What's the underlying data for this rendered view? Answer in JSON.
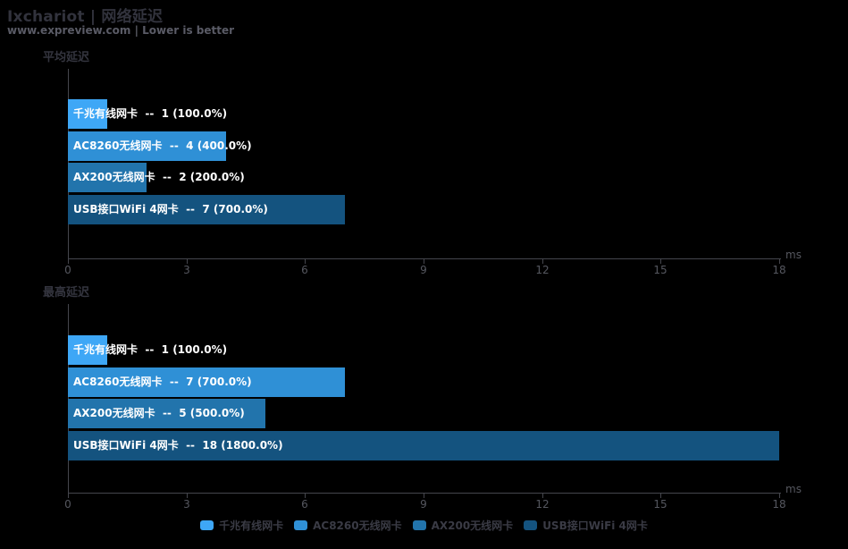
{
  "header": {
    "title": "Ixchariot | 网络延迟",
    "subtitle": "www.expreview.com | Lower is better"
  },
  "palette": {
    "background": "#000000",
    "title_color": "#32333d",
    "subtitle_color": "#5a5b66",
    "section_title_color": "#34353f",
    "axis_color": "#45464d",
    "tick_label_color": "#55575f",
    "legend_text_color": "#3a3b45",
    "bar_label_color": "#ffffff",
    "series_colors": [
      "#3ea7f6",
      "#2f90d6",
      "#2274ac",
      "#14537f"
    ]
  },
  "chart_data": [
    {
      "type": "bar",
      "orientation": "horizontal",
      "title": "平均延迟",
      "categories": [
        "千兆有线网卡",
        "AC8260无线网卡",
        "AX200无线网卡",
        "USB接口WiFi 4网卡"
      ],
      "values": [
        1,
        4,
        2,
        7
      ],
      "percent_labels": [
        "100.0%",
        "400.0%",
        "200.0%",
        "700.0%"
      ],
      "data_labels": [
        "千兆有线网卡  --  1 (100.0%)",
        "AC8260无线网卡  --  4 (400.0%)",
        "AX200无线网卡  --  2 (200.0%)",
        "USB接口WiFi 4网卡  --  7 (700.0%)"
      ],
      "xlabel_unit": "ms",
      "xlim": [
        0,
        18
      ],
      "xticks": [
        0,
        3,
        6,
        9,
        12,
        15,
        18
      ],
      "grid": false,
      "legend_position": "bottom"
    },
    {
      "type": "bar",
      "orientation": "horizontal",
      "title": "最高延迟",
      "categories": [
        "千兆有线网卡",
        "AC8260无线网卡",
        "AX200无线网卡",
        "USB接口WiFi 4网卡"
      ],
      "values": [
        1,
        7,
        5,
        18
      ],
      "percent_labels": [
        "100.0%",
        "700.0%",
        "500.0%",
        "1800.0%"
      ],
      "data_labels": [
        "千兆有线网卡  --  1 (100.0%)",
        "AC8260无线网卡  --  7 (700.0%)",
        "AX200无线网卡  --  5 (500.0%)",
        "USB接口WiFi 4网卡  --  18 (1800.0%)"
      ],
      "xlabel_unit": "ms",
      "xlim": [
        0,
        18
      ],
      "xticks": [
        0,
        3,
        6,
        9,
        12,
        15,
        18
      ],
      "grid": false,
      "legend_position": "bottom"
    }
  ],
  "legend": {
    "items": [
      "千兆有线网卡",
      "AC8260无线网卡",
      "AX200无线网卡",
      "USB接口WiFi 4网卡"
    ]
  }
}
